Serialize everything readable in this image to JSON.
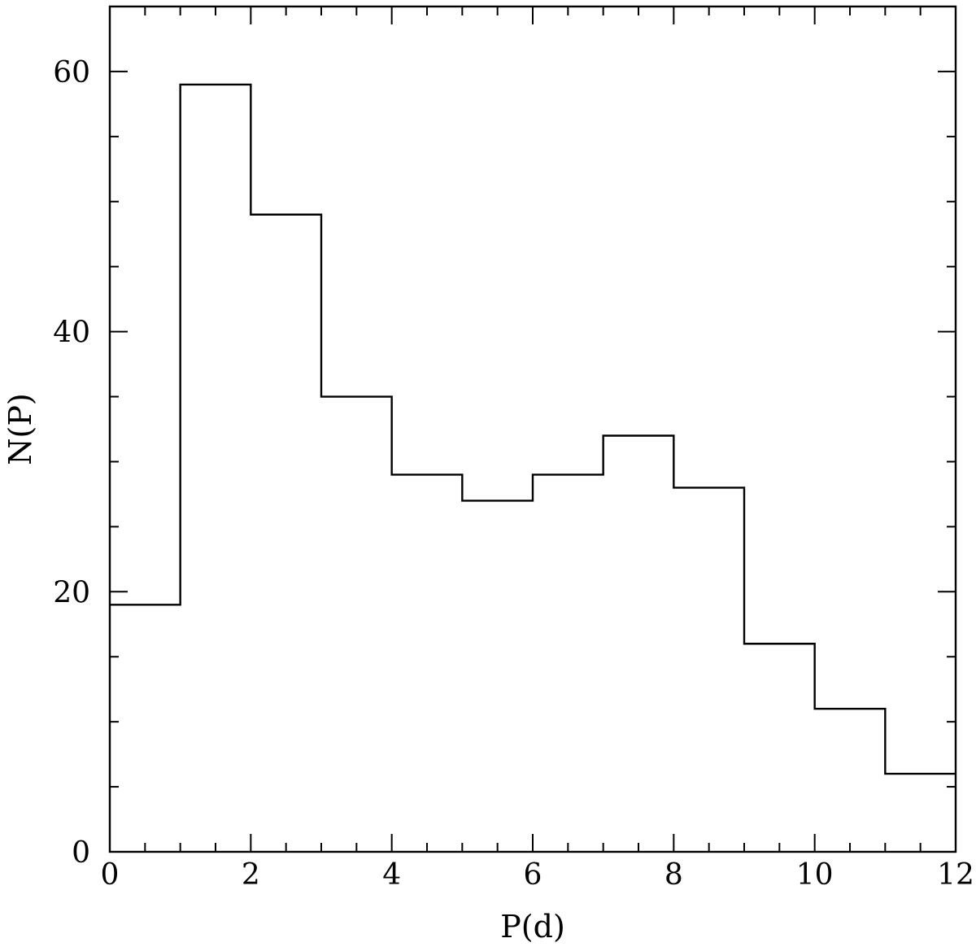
{
  "chart_data": {
    "type": "bar",
    "histogram": true,
    "xlabel": "P(d)",
    "ylabel": "N(P)",
    "xlim": [
      0,
      12
    ],
    "ylim": [
      0,
      65
    ],
    "grid": false,
    "bin_edges": [
      0,
      1,
      2,
      3,
      4,
      5,
      6,
      7,
      8,
      9,
      10,
      11,
      12
    ],
    "values": [
      19,
      59,
      49,
      35,
      29,
      27,
      29,
      32,
      28,
      16,
      11,
      6
    ],
    "x_ticks_major": [
      0,
      2,
      4,
      6,
      8,
      10,
      12
    ],
    "x_tick_labels": [
      "0",
      "2",
      "4",
      "6",
      "8",
      "10",
      "12"
    ],
    "y_ticks_major": [
      0,
      20,
      40,
      60
    ],
    "y_tick_labels": [
      "0",
      "20",
      "40",
      "60"
    ],
    "x_minor_step": 0.5,
    "y_minor_step": 5,
    "colors": {
      "line": "#000000",
      "background": "#ffffff"
    }
  }
}
